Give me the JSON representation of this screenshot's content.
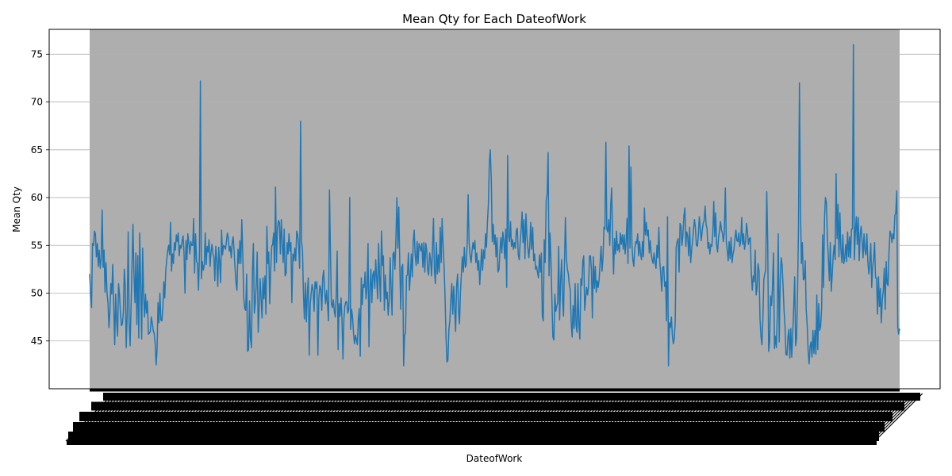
{
  "chart_data": {
    "type": "line",
    "title": "Mean Qty for Each DateofWork",
    "xlabel": "DateofWork",
    "ylabel": "Mean Qty",
    "ylim": [
      40,
      77.6
    ],
    "yticks": [
      45,
      50,
      55,
      60,
      65,
      70,
      75
    ],
    "grid": "y",
    "x_tick_labels_legible": false,
    "point_count": 850,
    "series": [
      {
        "color": "#1f77b4",
        "values": [
          52,
          50,
          48.5,
          55.2,
          55,
          56.5,
          56.2,
          53.8,
          55.2,
          52.8,
          54.5,
          52.6,
          53.7,
          58.7,
          52.7,
          54.5,
          50.1,
          53.2,
          50,
          49,
          46.4,
          48,
          51,
          49.9,
          53,
          48.6,
          44.6,
          49.9,
          47.2,
          45.5,
          51,
          49.9,
          47.9,
          46.6,
          46.8,
          48,
          52.5,
          50.7,
          44.3,
          47.7,
          56.4,
          47,
          44.5,
          48.5,
          52.9,
          57.2,
          52.1,
          49,
          54.2,
          46.7,
          53.9,
          45.3,
          56.3,
          51,
          45.2,
          54.7,
          50,
          47.5,
          49.9,
          47.9,
          49.2,
          45.7,
          45.8,
          46,
          47.5,
          46.9,
          46.1,
          45.8,
          44.7,
          42.5,
          44.1,
          49,
          46.9,
          50,
          47.2,
          47.1,
          48.5,
          51.2,
          49.5,
          52.3,
          53.4,
          54.4,
          55,
          54,
          57.4,
          52.3,
          54.1,
          53.1,
          55.3,
          54.5,
          56.1,
          55.4,
          56.3,
          53.9,
          55,
          54.7,
          55.4,
          56,
          54.1,
          50,
          55.5,
          53.5,
          56.2,
          55.3,
          54.1,
          55.4,
          55,
          55,
          57.8,
          52.1,
          56.2,
          53.3,
          53.1,
          50.3,
          54.1,
          72.2,
          51.5,
          53.3,
          52.4,
          53,
          56.3,
          53,
          54.9,
          54.3,
          55.6,
          52.8,
          54.3,
          55.1,
          54.1,
          53.8,
          51.3,
          54.9,
          53.4,
          50.7,
          54.8,
          53.1,
          51.1,
          56.6,
          54,
          55,
          54.9,
          54.6,
          55.4,
          56.3,
          55.8,
          54.4,
          54.9,
          53.7,
          55.3,
          55.9,
          54.4,
          52.6,
          51.1,
          50.3,
          54.6,
          53.1,
          55.5,
          53.1,
          57.7,
          54.2,
          49.5,
          48.4,
          48.2,
          52,
          43.9,
          44.1,
          49.2,
          45.3,
          44.3,
          52.3,
          55.2,
          47.9,
          49,
          50.9,
          54.3,
          45.9,
          48.6,
          51.5,
          49.5,
          47.4,
          51.6,
          49.4,
          51.8,
          47.8,
          57,
          53.1,
          54.3,
          48.9,
          52.4,
          54.9,
          55.1,
          56.3,
          52.3,
          61.1,
          53.2,
          56.7,
          57.6,
          57.4,
          54.1,
          57.7,
          55.2,
          53.2,
          56.7,
          51.8,
          52.1,
          55.3,
          54.1,
          56.2,
          54.4,
          55.3,
          49,
          54.1,
          53.4,
          54.7,
          53.4,
          56.5,
          56.1,
          55,
          52.6,
          68,
          55.4,
          54.5,
          49.8,
          47.3,
          51.1,
          47,
          50.1,
          51.6,
          43.5,
          48.8,
          49.9,
          50.9,
          50.3,
          48.1,
          51.2,
          50.5,
          51.2,
          43.5,
          49.5,
          50.8,
          50.4,
          48.2,
          51.6,
          52.4,
          50.2,
          48.9,
          50.3,
          48.7,
          47.1,
          60.8,
          54.5,
          48.9,
          48.5,
          49.3,
          48.1,
          47.5,
          49.7,
          54.4,
          44.1,
          48.9,
          47.6,
          49.5,
          47.2,
          43.1,
          47.3,
          48.7,
          49.1,
          49.1,
          47.9,
          48.3,
          60,
          46.2,
          48.3,
          47.5,
          45.8,
          44.7,
          45.6,
          45.1,
          44.6,
          47.3,
          48.4,
          43.4,
          51.6,
          48.8,
          50.9,
          50.6,
          52.2,
          49.4,
          50.6,
          55.2,
          44.4,
          50.3,
          52.5,
          49,
          51.9,
          52.3,
          50.5,
          53.5,
          51.6,
          49.4,
          55.2,
          51.7,
          49.1,
          56.5,
          52.9,
          53.9,
          48.2,
          51.9,
          49.4,
          50.1,
          47.7,
          49.3,
          53.7,
          50.5,
          47.7,
          54.1,
          54.3,
          52.5,
          55.9,
          60,
          54.7,
          59,
          53.2,
          48.3,
          52.7,
          53,
          42.4,
          45.6,
          45.9,
          51.8,
          51.9,
          54.2,
          50.3,
          51.9,
          54.1,
          51.7,
          55.4,
          56.6,
          54,
          52.9,
          55.4,
          53.1,
          55.2,
          54.8,
          54.4,
          55.2,
          52.7,
          55.3,
          52.2,
          55.2,
          54.5,
          52.4,
          51.9,
          54.2,
          53.5,
          51.8,
          54.8,
          57.8,
          52.4,
          51,
          55.3,
          52,
          54,
          52.2,
          56.9,
          53.2,
          57.8,
          55.1,
          52.7,
          49.6,
          45.4,
          42.8,
          43,
          46.2,
          47.1,
          49.4,
          51,
          47.8,
          50.7,
          48.5,
          46,
          50.7,
          52,
          48.1,
          46.8,
          50.1,
          52,
          53.8,
          52.2,
          54.8,
          52.7,
          53,
          55.2,
          60.3,
          55.3,
          54,
          53.2,
          54.4,
          55.3,
          54.6,
          55.5,
          53.2,
          54.2,
          52.4,
          53.4,
          50.9,
          52.7,
          54.6,
          52.4,
          54.5,
          53.6,
          56.2,
          54.8,
          57.4,
          59.3,
          63.6,
          65,
          61.8,
          55.4,
          57.2,
          55.1,
          56.1,
          53.8,
          55.8,
          52.2,
          52.5,
          54.5,
          55.8,
          54.2,
          56.4,
          55.5,
          53.6,
          56.7,
          50.6,
          64.4,
          56,
          55.4,
          57.5,
          54.9,
          55.6,
          54.6,
          55.3,
          54.7,
          56.5,
          56.8,
          54.1,
          53.5,
          55.4,
          56.6,
          58.5,
          55.3,
          57.7,
          53.6,
          58.3,
          56,
          54.7,
          53.7,
          55,
          57.4,
          54.6,
          56.9,
          53.4,
          54.1,
          52.5,
          52.8,
          52.2,
          51.6,
          54,
          52.2,
          54.2,
          47.6,
          47.1,
          55.6,
          53.2,
          59.7,
          60.4,
          64.7,
          51.8,
          56.3,
          53.4,
          49.2,
          45.4,
          45.1,
          49.9,
          48.1,
          48.6,
          49,
          54.9,
          47.2,
          51.3,
          53.5,
          49.5,
          47.6,
          53.1,
          57.9,
          53.7,
          52.5,
          52,
          50.9,
          50.4,
          46.9,
          45.4,
          48.7,
          46.3,
          51,
          46.7,
          45.9,
          51,
          46.8,
          45.2,
          51.5,
          50.8,
          53.3,
          53.9,
          48.2,
          49.5,
          50.6,
          49.8,
          50.8,
          53.9,
          53.9,
          52.5,
          47.4,
          53.8,
          50.5,
          52.8,
          50.1,
          51.3,
          50.6,
          51.4,
          53.1,
          54.9,
          52.3,
          53.7,
          56.9,
          56.7,
          65.8,
          56.7,
          56.4,
          57.7,
          55,
          59.2,
          61,
          55.8,
          52,
          55.7,
          54.1,
          56.5,
          54.5,
          55.1,
          54.3,
          56.3,
          55.1,
          56.1,
          54.6,
          56.1,
          54.1,
          55.4,
          57.8,
          53.1,
          65.4,
          54.7,
          63.2,
          55.2,
          53.5,
          52.8,
          54.6,
          55.4,
          55.2,
          56.2,
          53.9,
          55.4,
          54.1,
          53.5,
          55.4,
          53.8,
          58.9,
          56.1,
          57.4,
          56,
          56.6,
          54.2,
          55.5,
          54.2,
          53.5,
          53.1,
          54.2,
          53.3,
          52.6,
          55,
          53.7,
          56.9,
          53.2,
          52,
          50.2,
          52.7,
          52.8,
          50.7,
          51.2,
          47.1,
          58,
          42.4,
          46.9,
          46.4,
          47.5,
          45.6,
          44.7,
          45.2,
          47,
          54.8,
          55.4,
          55.7,
          52.2,
          57.3,
          57,
          55,
          56.1,
          58.1,
          58.9,
          54.9,
          56.4,
          55.9,
          53.9,
          56.9,
          53.2,
          54.5,
          55.5,
          56.7,
          57.7,
          56.8,
          55,
          54.9,
          56.1,
          58,
          56.8,
          55.5,
          56.5,
          57.3,
          57.6,
          59.1,
          57.2,
          56.8,
          54.7,
          55.3,
          54.1,
          55.1,
          54.9,
          56.3,
          59.6,
          55.9,
          58.4,
          55.1,
          54.3,
          55.9,
          56.5,
          57.5,
          56.6,
          56.3,
          55.4,
          56.4,
          61,
          55.4,
          54.5,
          53.4,
          55.4,
          53.6,
          55.8,
          53.2,
          54.1,
          54.6,
          55.7,
          56.6,
          55.5,
          55.4,
          56.3,
          54.9,
          55.5,
          57.9,
          55.1,
          56.2,
          54.6,
          55.4,
          57.3,
          56.4,
          55.1,
          55.7,
          55.8,
          52.2,
          50.3,
          51.8,
          51.2,
          54.5,
          49.8,
          50.5,
          53.1,
          52.3,
          47.3,
          45.5,
          44.6,
          47.3,
          51.4,
          52,
          52.4,
          60.6,
          55.3,
          43.9,
          44.9,
          49.7,
          48.7,
          50.6,
          54.2,
          44.2,
          45.5,
          44.3,
          47.8,
          56.2,
          44.9,
          51.4,
          53.7,
          52.9,
          50.6,
          48.2,
          46.5,
          43.6,
          43.5,
          45.4,
          46.2,
          43.2,
          46.3,
          43.3,
          45.7,
          48.6,
          51.7,
          44.5,
          45.3,
          50.2,
          56.8,
          72,
          58.8,
          53.1,
          55.3,
          51.4,
          51.5,
          53.4,
          48.3,
          46.6,
          43.9,
          42.6,
          44.4,
          44.9,
          43.3,
          46.1,
          43.7,
          46.1,
          43.6,
          49.8,
          44.1,
          48.9,
          46.1,
          46.5,
          48.5,
          56.1,
          50.6,
          57.9,
          60,
          59.5,
          55.7,
          53.6,
          51.3,
          55.3,
          50.2,
          51.9,
          53.9,
          55,
          53.5,
          62.5,
          55.7,
          59.3,
          53.8,
          58.4,
          54.7,
          53.2,
          56.1,
          53.1,
          53.7,
          55.1,
          53.3,
          56.4,
          53.8,
          55.9,
          53.7,
          56.7,
          56.7,
          76,
          53.5,
          56.4,
          58,
          55.1,
          57.9,
          53.4,
          56.1,
          57,
          55.4,
          53.7,
          56.2,
          54.5,
          54,
          56.2,
          53.3,
          52,
          53.2,
          55.2,
          50.6,
          52.8,
          53.5,
          55.3,
          51.6,
          51.6,
          47.8,
          51.7,
          48.6,
          50.5,
          46.9,
          49.3,
          50.3,
          52.6,
          48.3,
          53.3,
          51,
          50.8,
          54.3,
          56.5,
          56.1,
          55.3,
          56.2,
          55.7,
          58.1,
          58.4,
          60.7,
          46.5,
          45.7,
          46.3
        ]
      }
    ],
    "colors": {
      "line": "#1f77b4",
      "x_labels_block": "#aeaeae",
      "grid": "#b0b0b0"
    }
  }
}
